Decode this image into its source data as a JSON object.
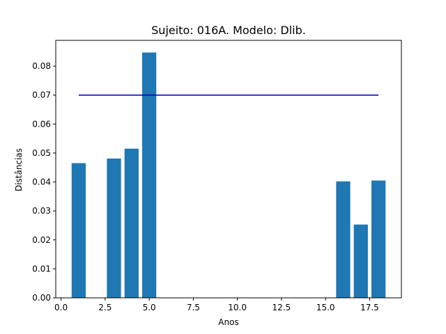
{
  "chart_data": {
    "type": "bar",
    "title": "Sujeito: 016A. Modelo: Dlib.",
    "xlabel": "Anos",
    "ylabel": "Distâncias",
    "xlim": [
      -0.3,
      19.3
    ],
    "ylim": [
      0,
      0.0889
    ],
    "xticks": [
      0.0,
      2.5,
      5.0,
      7.5,
      10.0,
      12.5,
      15.0,
      17.5
    ],
    "xtick_labels": [
      "0.0",
      "2.5",
      "5.0",
      "7.5",
      "10.0",
      "12.5",
      "15.0",
      "17.5"
    ],
    "yticks": [
      0.0,
      0.01,
      0.02,
      0.03,
      0.04,
      0.05,
      0.06,
      0.07,
      0.08
    ],
    "ytick_labels": [
      "0.00",
      "0.01",
      "0.02",
      "0.03",
      "0.04",
      "0.05",
      "0.06",
      "0.07",
      "0.08"
    ],
    "bar_width": 0.8,
    "bar_color": "#1f77b4",
    "bars": [
      {
        "x": 1,
        "value": 0.0465
      },
      {
        "x": 3,
        "value": 0.0481
      },
      {
        "x": 4,
        "value": 0.0515
      },
      {
        "x": 5,
        "value": 0.0847
      },
      {
        "x": 16,
        "value": 0.0402
      },
      {
        "x": 17,
        "value": 0.0253
      },
      {
        "x": 18,
        "value": 0.0405
      }
    ],
    "reference_line": {
      "y": 0.07,
      "x_start": 1,
      "x_end": 18,
      "color": "#0000cc"
    },
    "grid": false,
    "legend": "none"
  }
}
